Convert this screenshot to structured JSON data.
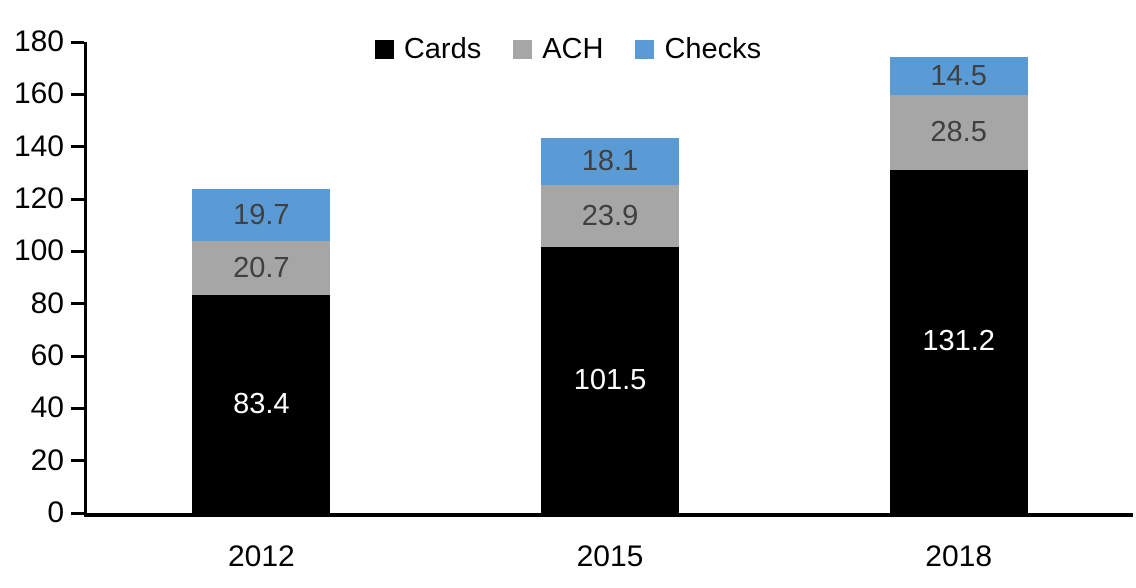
{
  "chart_data": {
    "type": "bar",
    "stacked": true,
    "title": "",
    "xlabel": "",
    "ylabel": "",
    "categories": [
      "2012",
      "2015",
      "2018"
    ],
    "series": [
      {
        "name": "Cards",
        "color": "#000000",
        "label_color": "#ffffff",
        "values": [
          83.4,
          101.5,
          131.2
        ]
      },
      {
        "name": "ACH",
        "color": "#a6a6a6",
        "label_color": "#404040",
        "values": [
          20.7,
          23.9,
          28.5
        ]
      },
      {
        "name": "Checks",
        "color": "#5b9bd5",
        "label_color": "#404040",
        "values": [
          19.7,
          18.1,
          14.5
        ]
      }
    ],
    "ylim": [
      0,
      180
    ],
    "ytick_step": 20,
    "yticks": [
      0,
      20,
      40,
      60,
      80,
      100,
      120,
      140,
      160,
      180
    ],
    "grid": false,
    "legend_position": "top",
    "axis_color": "#000000"
  }
}
